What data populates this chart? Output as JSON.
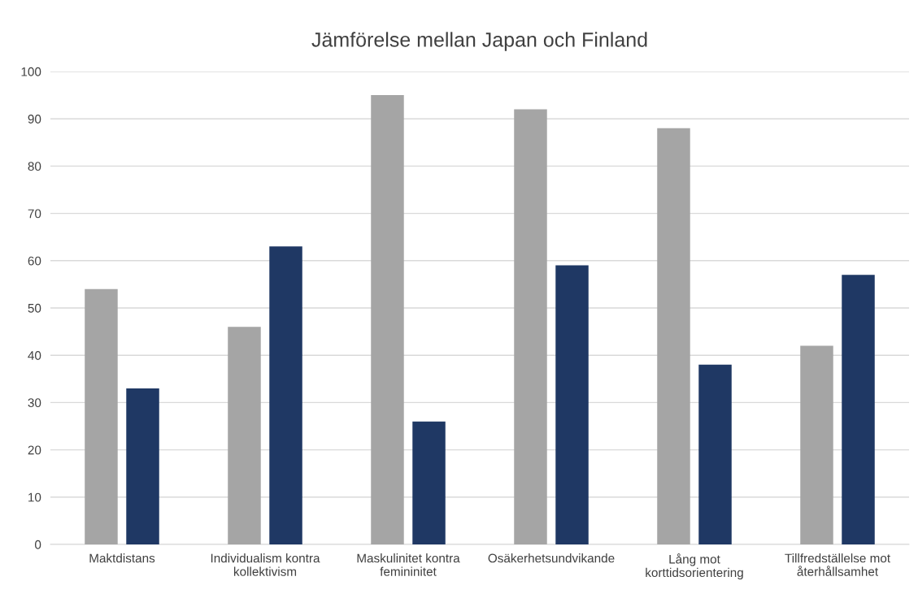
{
  "chart_data": {
    "type": "bar",
    "title": "Jämförelse mellan Japan och Finland",
    "categories": [
      "Maktdistans",
      "Individualism kontra\nkollektivism",
      "Maskulinitet kontra\nfemininitet",
      "Osäkerhetsundvikande",
      "Lång mot\nkorttidsorientering",
      "Tillfredställelse mot\nåterhållsamhet"
    ],
    "series": [
      {
        "color": "#a5a5a5",
        "values": [
          54,
          46,
          95,
          92,
          88,
          42
        ]
      },
      {
        "color": "#1f3864",
        "values": [
          33,
          63,
          26,
          59,
          38,
          57
        ]
      }
    ],
    "ylim": [
      0,
      100
    ],
    "yticks": [
      0,
      10,
      20,
      30,
      40,
      50,
      60,
      70,
      80,
      90,
      100
    ],
    "grid": "y"
  }
}
